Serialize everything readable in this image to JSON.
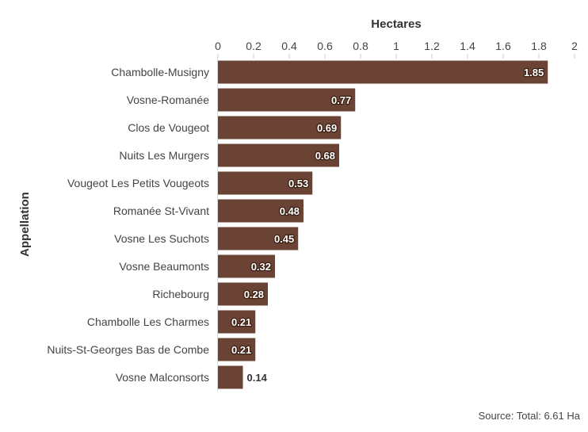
{
  "chart_data": {
    "type": "bar",
    "orientation": "horizontal",
    "title": "",
    "xlabel": "Hectares",
    "ylabel": "Appellation",
    "xlim": [
      0,
      2
    ],
    "xticks": [
      0,
      0.2,
      0.4,
      0.6,
      0.8,
      1,
      1.2,
      1.4,
      1.6,
      1.8,
      2
    ],
    "xtick_labels": [
      "0",
      "0.2",
      "0.4",
      "0.6",
      "0.8",
      "1",
      "1.2",
      "1.4",
      "1.6",
      "1.8",
      "2"
    ],
    "categories": [
      "Chambolle-Musigny",
      "Vosne-Romanée",
      "Clos de Vougeot",
      "Nuits Les Murgers",
      "Vougeot Les Petits Vougeots",
      "Romanée St-Vivant",
      "Vosne Les Suchots",
      "Vosne Beaumonts",
      "Richebourg",
      "Chambolle Les Charmes",
      "Nuits-St-Georges Bas de Combe",
      "Vosne Malconsorts"
    ],
    "values": [
      1.85,
      0.77,
      0.69,
      0.68,
      0.53,
      0.48,
      0.45,
      0.32,
      0.28,
      0.21,
      0.21,
      0.14
    ],
    "value_labels": [
      "1.85",
      "0.77",
      "0.69",
      "0.68",
      "0.53",
      "0.48",
      "0.45",
      "0.32",
      "0.28",
      "0.21",
      "0.21",
      "0.14"
    ],
    "bar_color": "#6b4334",
    "grid": false,
    "legend": "none"
  },
  "footer": {
    "source": "Source: Total: 6.61 Ha"
  }
}
